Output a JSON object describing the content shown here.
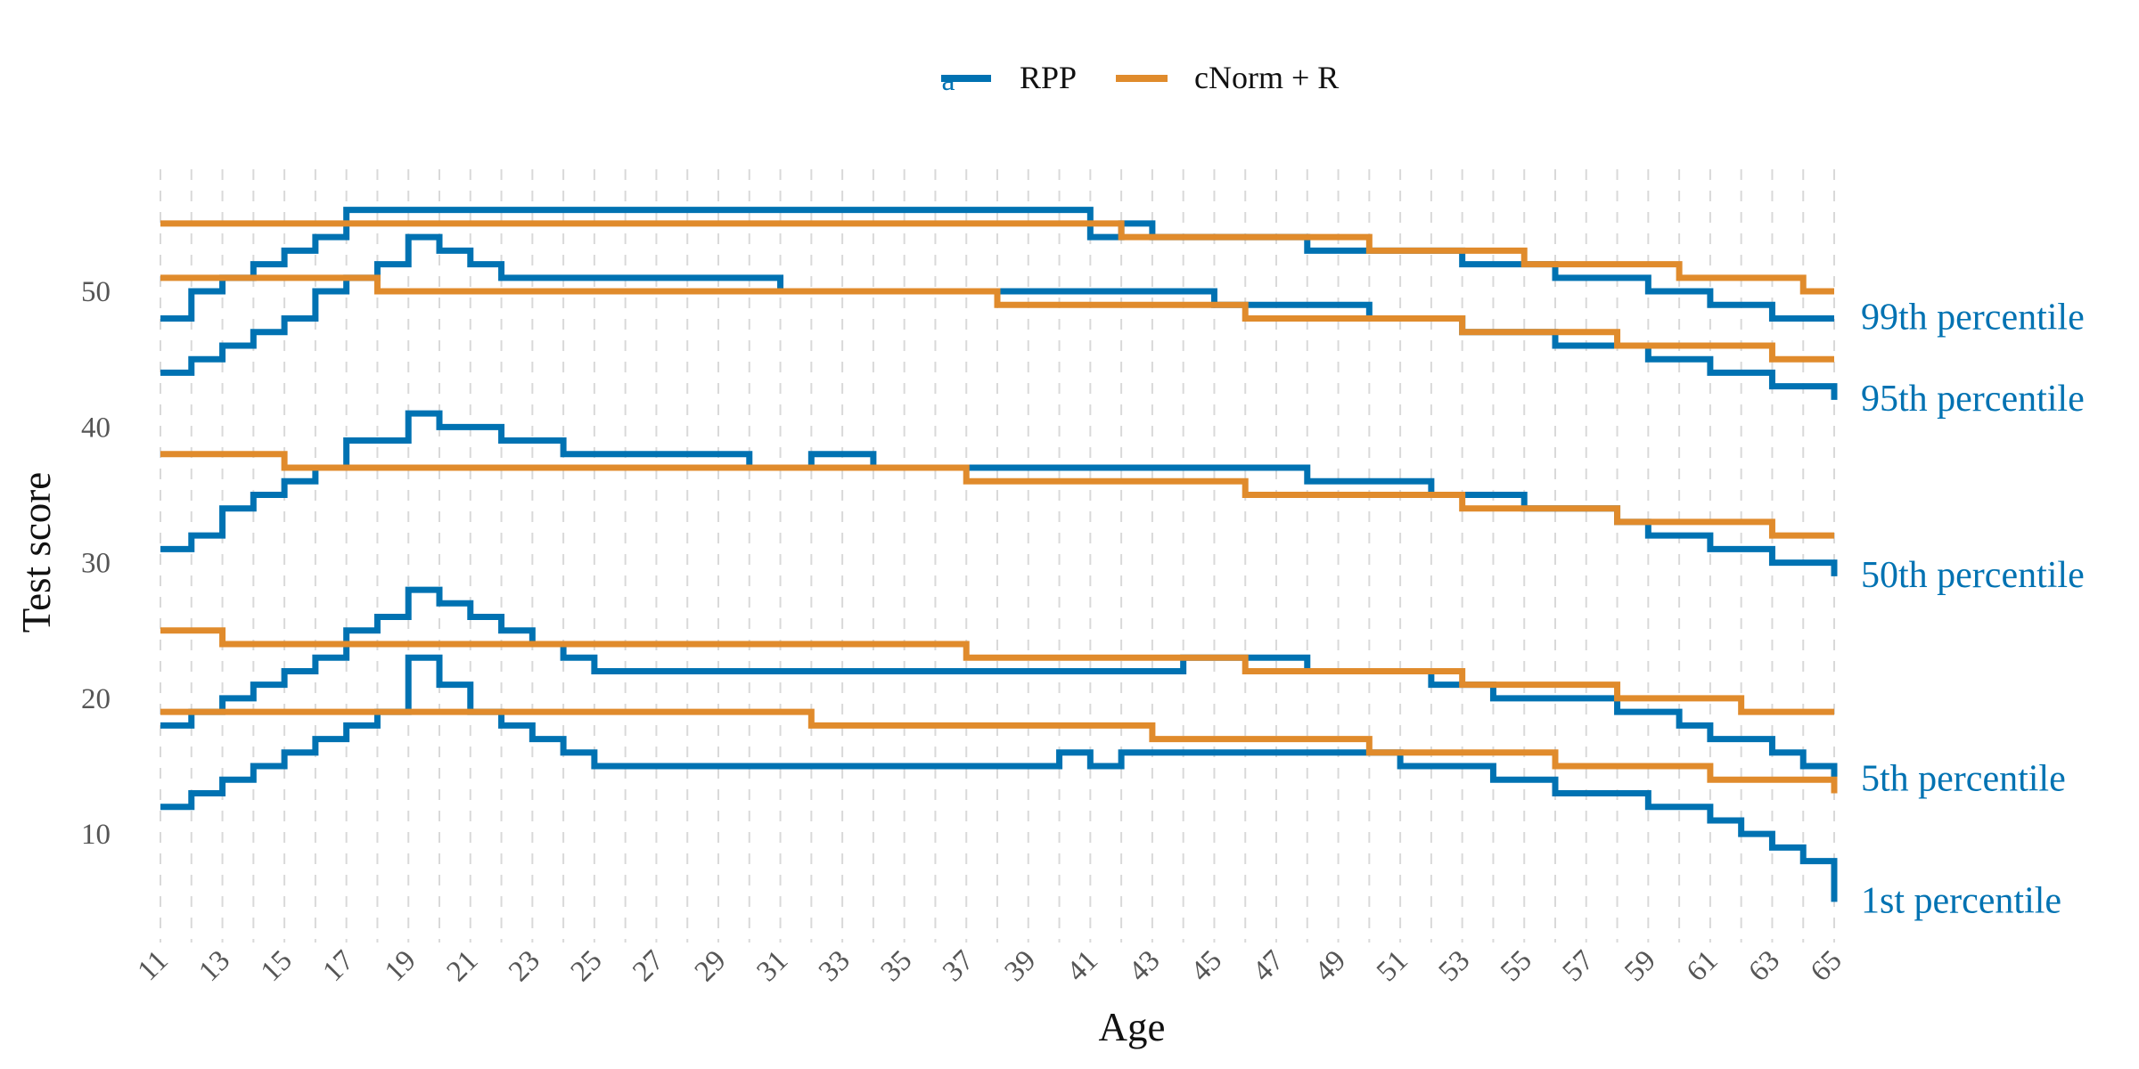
{
  "chart_data": {
    "type": "line",
    "step": true,
    "xlabel": "Age",
    "ylabel": "Test score",
    "xlim": [
      11,
      65
    ],
    "ylim": [
      2,
      59
    ],
    "x_ticks": [
      11,
      13,
      15,
      17,
      19,
      21,
      23,
      25,
      27,
      29,
      31,
      33,
      35,
      37,
      39,
      41,
      43,
      45,
      47,
      49,
      51,
      53,
      55,
      57,
      59,
      61,
      63,
      65
    ],
    "y_ticks": [
      10,
      20,
      30,
      40,
      50
    ],
    "grid": "vertical-dashed",
    "legend": {
      "position": "top",
      "glyph": "a",
      "entries": [
        {
          "label": "RPP",
          "color": "#0072B2"
        },
        {
          "label": "cNorm + R",
          "color": "#E08B2C"
        }
      ]
    },
    "percentile_labels": [
      {
        "text": "99th percentile",
        "y": 48
      },
      {
        "text": "95th percentile",
        "y": 42
      },
      {
        "text": "50th percentile",
        "y": 29
      },
      {
        "text": "5th percentile",
        "y": 14
      },
      {
        "text": "1st percentile",
        "y": 5
      }
    ],
    "series": [
      {
        "group": "RPP",
        "color": "#0072B2",
        "percentile": "99th",
        "points": [
          [
            11,
            48
          ],
          [
            12,
            50
          ],
          [
            13,
            51
          ],
          [
            14,
            52
          ],
          [
            15,
            53
          ],
          [
            16,
            54
          ],
          [
            17,
            56
          ],
          [
            41,
            56
          ],
          [
            41,
            54
          ],
          [
            42,
            55
          ],
          [
            43,
            55
          ],
          [
            43,
            54
          ],
          [
            48,
            54
          ],
          [
            48,
            53
          ],
          [
            50,
            53
          ],
          [
            53,
            53
          ],
          [
            53,
            52
          ],
          [
            55,
            52
          ],
          [
            56,
            51
          ],
          [
            59,
            51
          ],
          [
            59,
            50
          ],
          [
            61,
            50
          ],
          [
            61,
            49
          ],
          [
            63,
            49
          ],
          [
            63,
            48
          ],
          [
            65,
            48
          ]
        ]
      },
      {
        "group": "RPP",
        "color": "#0072B2",
        "percentile": "95th",
        "points": [
          [
            11,
            44
          ],
          [
            12,
            45
          ],
          [
            13,
            46
          ],
          [
            14,
            47
          ],
          [
            15,
            48
          ],
          [
            16,
            50
          ],
          [
            17,
            51
          ],
          [
            18,
            52
          ],
          [
            19,
            54
          ],
          [
            20,
            53
          ],
          [
            21,
            52
          ],
          [
            22,
            51
          ],
          [
            31,
            51
          ],
          [
            31,
            50
          ],
          [
            38,
            50
          ],
          [
            45,
            50
          ],
          [
            45,
            49
          ],
          [
            47,
            49
          ],
          [
            50,
            49
          ],
          [
            50,
            48
          ],
          [
            53,
            48
          ],
          [
            53,
            47
          ],
          [
            56,
            47
          ],
          [
            56,
            46
          ],
          [
            58,
            46
          ],
          [
            59,
            45
          ],
          [
            61,
            45
          ],
          [
            61,
            44
          ],
          [
            63,
            44
          ],
          [
            63,
            43
          ],
          [
            65,
            43
          ],
          [
            65,
            42
          ]
        ]
      },
      {
        "group": "RPP",
        "color": "#0072B2",
        "percentile": "50th",
        "points": [
          [
            11,
            31
          ],
          [
            12,
            32
          ],
          [
            13,
            34
          ],
          [
            14,
            35
          ],
          [
            15,
            36
          ],
          [
            16,
            37
          ],
          [
            17,
            39
          ],
          [
            19,
            39
          ],
          [
            19,
            41
          ],
          [
            20,
            41
          ],
          [
            20,
            40
          ],
          [
            22,
            40
          ],
          [
            22,
            39
          ],
          [
            24,
            39
          ],
          [
            24,
            38
          ],
          [
            30,
            38
          ],
          [
            30,
            37
          ],
          [
            32,
            37
          ],
          [
            32,
            38
          ],
          [
            34,
            38
          ],
          [
            34,
            37
          ],
          [
            48,
            37
          ],
          [
            48,
            36
          ],
          [
            52,
            36
          ],
          [
            52,
            35
          ],
          [
            55,
            35
          ],
          [
            55,
            34
          ],
          [
            58,
            34
          ],
          [
            58,
            33
          ],
          [
            59,
            33
          ],
          [
            59,
            32
          ],
          [
            61,
            32
          ],
          [
            61,
            31
          ],
          [
            63,
            31
          ],
          [
            63,
            30
          ],
          [
            65,
            30
          ],
          [
            65,
            29
          ]
        ]
      },
      {
        "group": "RPP",
        "color": "#0072B2",
        "percentile": "5th",
        "points": [
          [
            11,
            18
          ],
          [
            12,
            19
          ],
          [
            13,
            20
          ],
          [
            14,
            21
          ],
          [
            15,
            22
          ],
          [
            16,
            23
          ],
          [
            17,
            25
          ],
          [
            18,
            26
          ],
          [
            19,
            28
          ],
          [
            20,
            27
          ],
          [
            21,
            26
          ],
          [
            22,
            25
          ],
          [
            23,
            24
          ],
          [
            24,
            23
          ],
          [
            25,
            22
          ],
          [
            44,
            22
          ],
          [
            44,
            23
          ],
          [
            46,
            23
          ],
          [
            48,
            23
          ],
          [
            48,
            22
          ],
          [
            52,
            22
          ],
          [
            52,
            21
          ],
          [
            54,
            21
          ],
          [
            54,
            20
          ],
          [
            58,
            20
          ],
          [
            58,
            19
          ],
          [
            60,
            19
          ],
          [
            60,
            18
          ],
          [
            61,
            18
          ],
          [
            61,
            17
          ],
          [
            63,
            17
          ],
          [
            63,
            16
          ],
          [
            64,
            16
          ],
          [
            64,
            15
          ],
          [
            65,
            15
          ],
          [
            65,
            14
          ]
        ]
      },
      {
        "group": "RPP",
        "color": "#0072B2",
        "percentile": "1st",
        "points": [
          [
            11,
            12
          ],
          [
            12,
            13
          ],
          [
            13,
            14
          ],
          [
            14,
            15
          ],
          [
            15,
            16
          ],
          [
            16,
            17
          ],
          [
            17,
            18
          ],
          [
            18,
            19
          ],
          [
            19,
            19
          ],
          [
            19,
            23
          ],
          [
            20,
            23
          ],
          [
            20,
            21
          ],
          [
            21,
            21
          ],
          [
            21,
            19
          ],
          [
            22,
            18
          ],
          [
            23,
            17
          ],
          [
            24,
            16
          ],
          [
            25,
            15
          ],
          [
            40,
            15
          ],
          [
            40,
            16
          ],
          [
            41,
            16
          ],
          [
            41,
            15
          ],
          [
            42,
            15
          ],
          [
            42,
            16
          ],
          [
            51,
            16
          ],
          [
            51,
            15
          ],
          [
            54,
            15
          ],
          [
            54,
            14
          ],
          [
            56,
            14
          ],
          [
            56,
            13
          ],
          [
            59,
            13
          ],
          [
            59,
            12
          ],
          [
            60,
            12
          ],
          [
            61,
            11
          ],
          [
            62,
            10
          ],
          [
            63,
            9
          ],
          [
            64,
            8
          ],
          [
            65,
            8
          ],
          [
            65,
            5
          ]
        ]
      },
      {
        "group": "cNorm + R",
        "color": "#E08B2C",
        "percentile": "99th",
        "points": [
          [
            11,
            55
          ],
          [
            42,
            55
          ],
          [
            42,
            54
          ],
          [
            50,
            54
          ],
          [
            50,
            53
          ],
          [
            55,
            53
          ],
          [
            55,
            52
          ],
          [
            60,
            52
          ],
          [
            60,
            51
          ],
          [
            64,
            51
          ],
          [
            64,
            50
          ],
          [
            65,
            50
          ]
        ]
      },
      {
        "group": "cNorm + R",
        "color": "#E08B2C",
        "percentile": "95th",
        "points": [
          [
            11,
            51
          ],
          [
            18,
            51
          ],
          [
            18,
            50
          ],
          [
            38,
            50
          ],
          [
            38,
            49
          ],
          [
            46,
            49
          ],
          [
            46,
            48
          ],
          [
            53,
            48
          ],
          [
            53,
            47
          ],
          [
            58,
            47
          ],
          [
            58,
            46
          ],
          [
            63,
            46
          ],
          [
            63,
            45
          ],
          [
            65,
            45
          ]
        ]
      },
      {
        "group": "cNorm + R",
        "color": "#E08B2C",
        "percentile": "50th",
        "points": [
          [
            11,
            38
          ],
          [
            15,
            38
          ],
          [
            15,
            37
          ],
          [
            37,
            37
          ],
          [
            37,
            36
          ],
          [
            46,
            36
          ],
          [
            46,
            35
          ],
          [
            53,
            35
          ],
          [
            53,
            34
          ],
          [
            58,
            34
          ],
          [
            58,
            33
          ],
          [
            63,
            33
          ],
          [
            63,
            32
          ],
          [
            65,
            32
          ]
        ]
      },
      {
        "group": "cNorm + R",
        "color": "#E08B2C",
        "percentile": "5th",
        "points": [
          [
            11,
            25
          ],
          [
            13,
            25
          ],
          [
            13,
            24
          ],
          [
            37,
            24
          ],
          [
            37,
            23
          ],
          [
            46,
            23
          ],
          [
            46,
            22
          ],
          [
            53,
            22
          ],
          [
            53,
            21
          ],
          [
            58,
            21
          ],
          [
            58,
            20
          ],
          [
            62,
            20
          ],
          [
            62,
            19
          ],
          [
            65,
            19
          ]
        ]
      },
      {
        "group": "cNorm + R",
        "color": "#E08B2C",
        "percentile": "1st",
        "points": [
          [
            11,
            19
          ],
          [
            32,
            19
          ],
          [
            32,
            18
          ],
          [
            43,
            18
          ],
          [
            43,
            17
          ],
          [
            50,
            17
          ],
          [
            50,
            16
          ],
          [
            56,
            16
          ],
          [
            56,
            15
          ],
          [
            61,
            15
          ],
          [
            61,
            14
          ],
          [
            65,
            14
          ],
          [
            65,
            13
          ]
        ]
      }
    ]
  }
}
